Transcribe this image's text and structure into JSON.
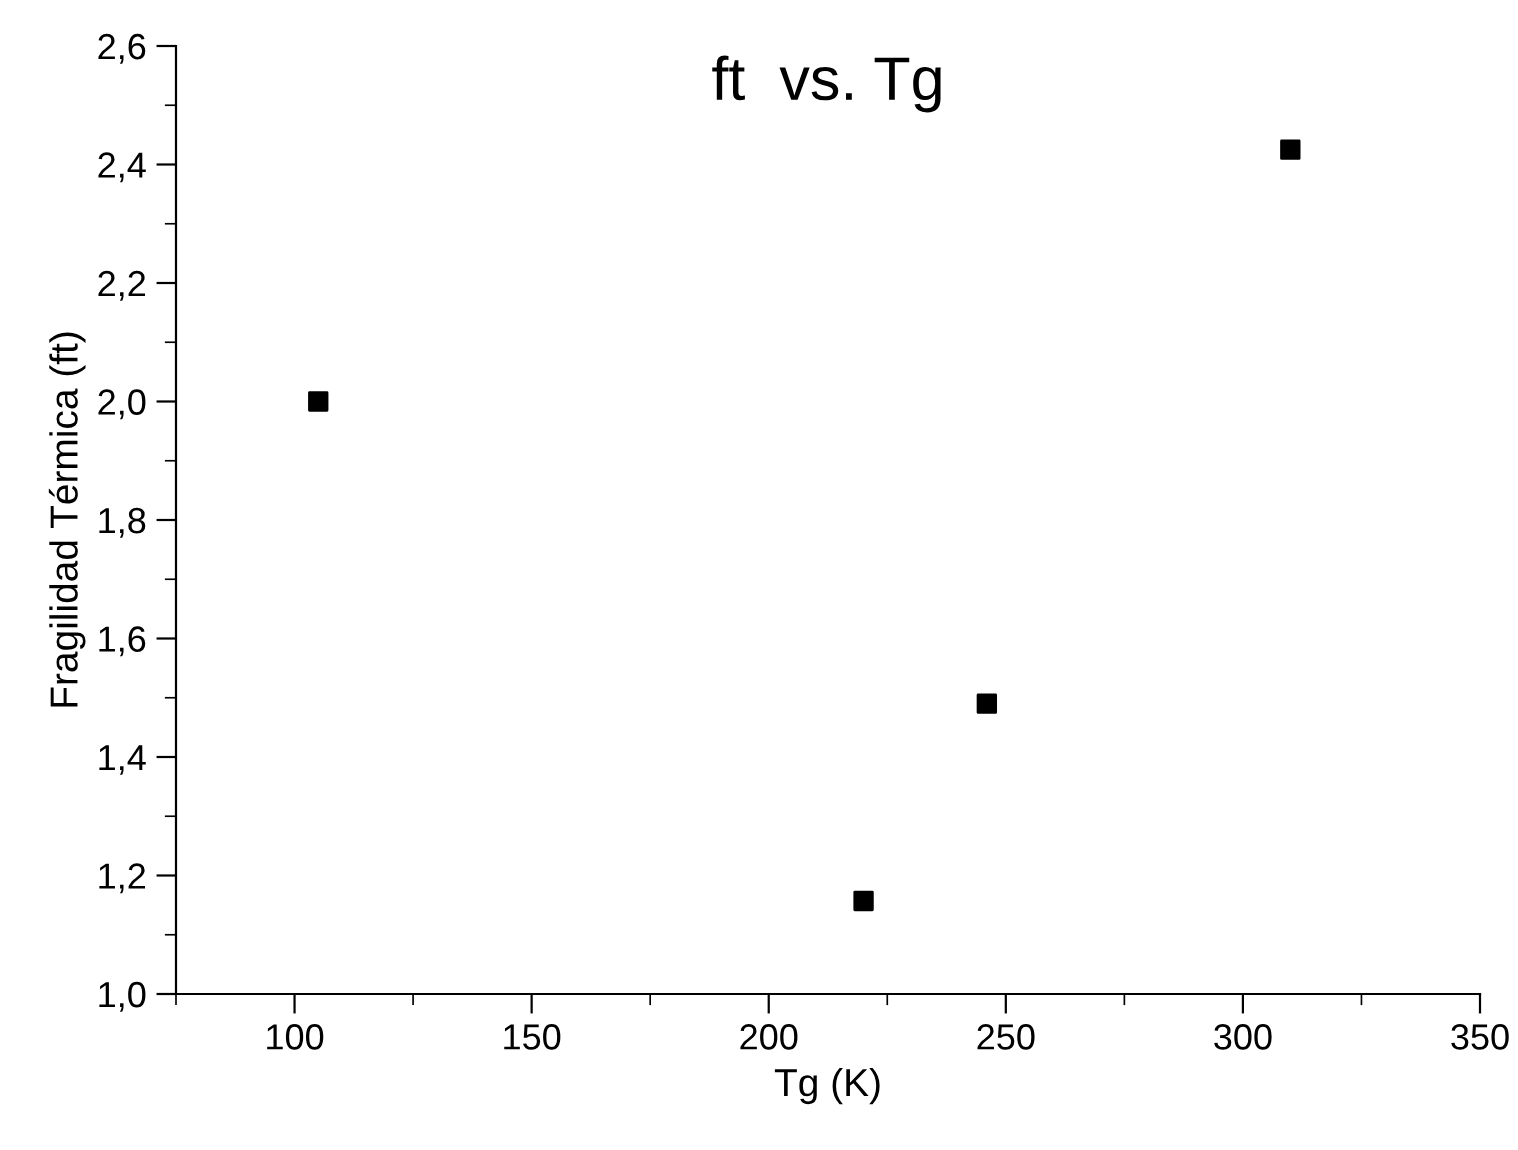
{
  "chart_data": {
    "type": "scatter",
    "title": "ft  vs. Tg",
    "xlabel": "Tg (K)",
    "ylabel": "Fragilidad Térmica (ft)",
    "x": [
      105,
      220,
      246,
      310
    ],
    "values": [
      2.0,
      1.157,
      1.49,
      2.425
    ],
    "color": "#000000",
    "marker": "square",
    "xlim": [
      75,
      350
    ],
    "xticks": [
      100,
      150,
      200,
      250,
      300,
      350
    ],
    "ylim": [
      1.0,
      2.6
    ],
    "yticks": [
      {
        "value": 1.0,
        "label": "1,0"
      },
      {
        "value": 1.2,
        "label": "1,2"
      },
      {
        "value": 1.4,
        "label": "1,4"
      },
      {
        "value": 1.6,
        "label": "1,6"
      },
      {
        "value": 1.8,
        "label": "1,8"
      },
      {
        "value": 2.0,
        "label": "2,0"
      },
      {
        "value": 2.2,
        "label": "2,2"
      },
      {
        "value": 2.4,
        "label": "2,4"
      },
      {
        "value": 2.6,
        "label": "2,6"
      }
    ],
    "grid": false,
    "legend": false
  }
}
